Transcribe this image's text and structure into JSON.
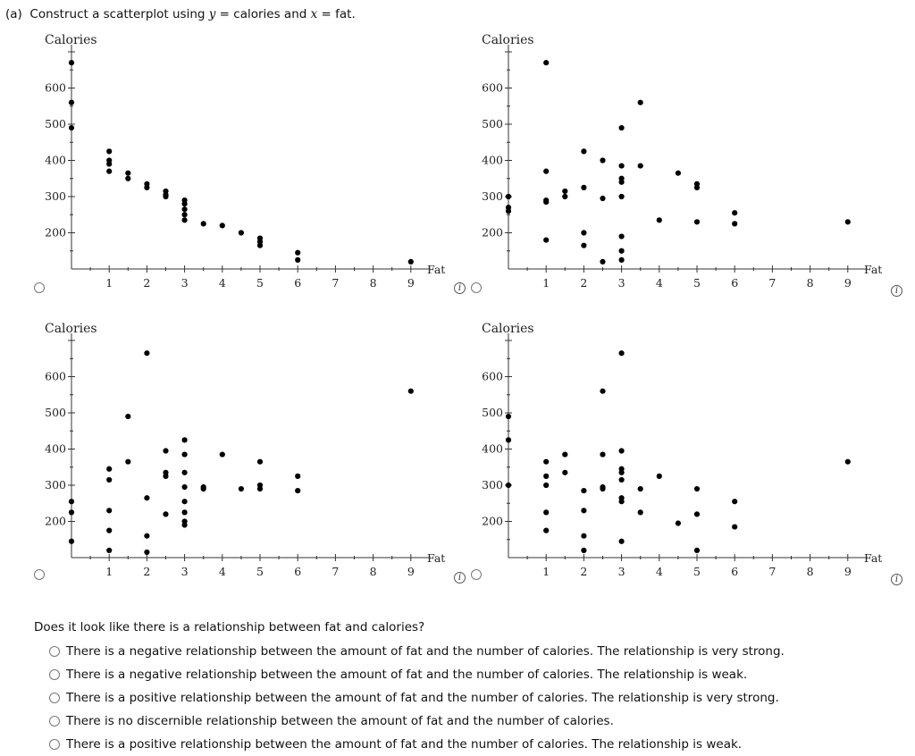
{
  "prompt": {
    "part": "(a)",
    "pre": "Construct a scatterplot using ",
    "y_var": "y",
    "mid": " = calories and ",
    "x_var": "x",
    "post": " = fat."
  },
  "info_label": "i",
  "chart_data": [
    {
      "type": "scatter",
      "ylabel": "Calories",
      "xlabel": "Fat",
      "xlim": [
        0,
        9.5
      ],
      "ylim": [
        100,
        700
      ],
      "xticks": [
        1,
        2,
        3,
        4,
        5,
        6,
        7,
        8,
        9
      ],
      "yticks": [
        200,
        300,
        400,
        500,
        600
      ],
      "points": [
        [
          0,
          670
        ],
        [
          0,
          560
        ],
        [
          0,
          490
        ],
        [
          1,
          425
        ],
        [
          1,
          400
        ],
        [
          1,
          390
        ],
        [
          1,
          370
        ],
        [
          1.5,
          365
        ],
        [
          1.5,
          350
        ],
        [
          2,
          335
        ],
        [
          2,
          325
        ],
        [
          2.5,
          315
        ],
        [
          2.5,
          305
        ],
        [
          2.5,
          300
        ],
        [
          3,
          290
        ],
        [
          3,
          280
        ],
        [
          3,
          265
        ],
        [
          3,
          250
        ],
        [
          3,
          235
        ],
        [
          3.5,
          225
        ],
        [
          4,
          220
        ],
        [
          4.5,
          200
        ],
        [
          5,
          185
        ],
        [
          5,
          175
        ],
        [
          5,
          165
        ],
        [
          6,
          145
        ],
        [
          6,
          125
        ],
        [
          9,
          120
        ]
      ]
    },
    {
      "type": "scatter",
      "ylabel": "Calories",
      "xlabel": "Fat",
      "xlim": [
        0,
        9.5
      ],
      "ylim": [
        100,
        700
      ],
      "xticks": [
        1,
        2,
        3,
        4,
        5,
        6,
        7,
        8,
        9
      ],
      "yticks": [
        200,
        300,
        400,
        500,
        600
      ],
      "points": [
        [
          0,
          300
        ],
        [
          0,
          270
        ],
        [
          0,
          260
        ],
        [
          1,
          670
        ],
        [
          1,
          370
        ],
        [
          1,
          290
        ],
        [
          1,
          285
        ],
        [
          1,
          180
        ],
        [
          1.5,
          315
        ],
        [
          1.5,
          300
        ],
        [
          2,
          425
        ],
        [
          2,
          325
        ],
        [
          2,
          200
        ],
        [
          2,
          165
        ],
        [
          2.5,
          400
        ],
        [
          2.5,
          295
        ],
        [
          2.5,
          120
        ],
        [
          3,
          490
        ],
        [
          3,
          385
        ],
        [
          3,
          350
        ],
        [
          3,
          340
        ],
        [
          3,
          300
        ],
        [
          3,
          190
        ],
        [
          3,
          150
        ],
        [
          3,
          125
        ],
        [
          3.5,
          560
        ],
        [
          3.5,
          385
        ],
        [
          4,
          235
        ],
        [
          4.5,
          365
        ],
        [
          5,
          335
        ],
        [
          5,
          325
        ],
        [
          5,
          230
        ],
        [
          6,
          255
        ],
        [
          6,
          225
        ],
        [
          9,
          230
        ]
      ]
    },
    {
      "type": "scatter",
      "ylabel": "Calories",
      "xlabel": "Fat",
      "xlim": [
        0,
        9.5
      ],
      "ylim": [
        100,
        700
      ],
      "xticks": [
        1,
        2,
        3,
        4,
        5,
        6,
        7,
        8,
        9
      ],
      "yticks": [
        200,
        300,
        400,
        500,
        600
      ],
      "points": [
        [
          0,
          255
        ],
        [
          0,
          225
        ],
        [
          0,
          145
        ],
        [
          1,
          345
        ],
        [
          1,
          315
        ],
        [
          1,
          230
        ],
        [
          1,
          175
        ],
        [
          1,
          120
        ],
        [
          1.5,
          490
        ],
        [
          1.5,
          365
        ],
        [
          2,
          665
        ],
        [
          2,
          265
        ],
        [
          2,
          160
        ],
        [
          2,
          115
        ],
        [
          2.5,
          395
        ],
        [
          2.5,
          335
        ],
        [
          2.5,
          325
        ],
        [
          2.5,
          220
        ],
        [
          3,
          425
        ],
        [
          3,
          385
        ],
        [
          3,
          335
        ],
        [
          3,
          295
        ],
        [
          3,
          255
        ],
        [
          3,
          225
        ],
        [
          3,
          200
        ],
        [
          3,
          190
        ],
        [
          3.5,
          295
        ],
        [
          3.5,
          290
        ],
        [
          4,
          385
        ],
        [
          4.5,
          290
        ],
        [
          5,
          365
        ],
        [
          5,
          300
        ],
        [
          5,
          290
        ],
        [
          6,
          325
        ],
        [
          6,
          285
        ],
        [
          9,
          560
        ]
      ]
    },
    {
      "type": "scatter",
      "ylabel": "Calories",
      "xlabel": "Fat",
      "xlim": [
        0,
        9.5
      ],
      "ylim": [
        100,
        700
      ],
      "xticks": [
        1,
        2,
        3,
        4,
        5,
        6,
        7,
        8,
        9
      ],
      "yticks": [
        200,
        300,
        400,
        500,
        600
      ],
      "points": [
        [
          0,
          490
        ],
        [
          0,
          425
        ],
        [
          0,
          300
        ],
        [
          1,
          365
        ],
        [
          1,
          325
        ],
        [
          1,
          300
        ],
        [
          1,
          225
        ],
        [
          1,
          175
        ],
        [
          1.5,
          385
        ],
        [
          1.5,
          335
        ],
        [
          2,
          285
        ],
        [
          2,
          230
        ],
        [
          2,
          160
        ],
        [
          2,
          120
        ],
        [
          2.5,
          560
        ],
        [
          2.5,
          385
        ],
        [
          2.5,
          295
        ],
        [
          2.5,
          290
        ],
        [
          3,
          665
        ],
        [
          3,
          395
        ],
        [
          3,
          345
        ],
        [
          3,
          335
        ],
        [
          3,
          315
        ],
        [
          3,
          265
        ],
        [
          3,
          255
        ],
        [
          3,
          145
        ],
        [
          3.5,
          290
        ],
        [
          3.5,
          225
        ],
        [
          4,
          325
        ],
        [
          4.5,
          195
        ],
        [
          5,
          290
        ],
        [
          5,
          220
        ],
        [
          5,
          120
        ],
        [
          6,
          255
        ],
        [
          6,
          185
        ],
        [
          9,
          365
        ]
      ]
    }
  ],
  "question": "Does it look like there is a relationship between fat and calories?",
  "options": [
    "There is a negative relationship between the amount of fat and the number of calories. The relationship is very strong.",
    "There is a negative relationship between the amount of fat and the number of calories. The relationship is weak.",
    "There is a positive relationship between the amount of fat and the number of calories. The relationship is very strong.",
    "There is no discernible relationship between the amount of fat and the number of calories.",
    "There is a positive relationship between the amount of fat and the number of calories. The relationship is weak."
  ]
}
